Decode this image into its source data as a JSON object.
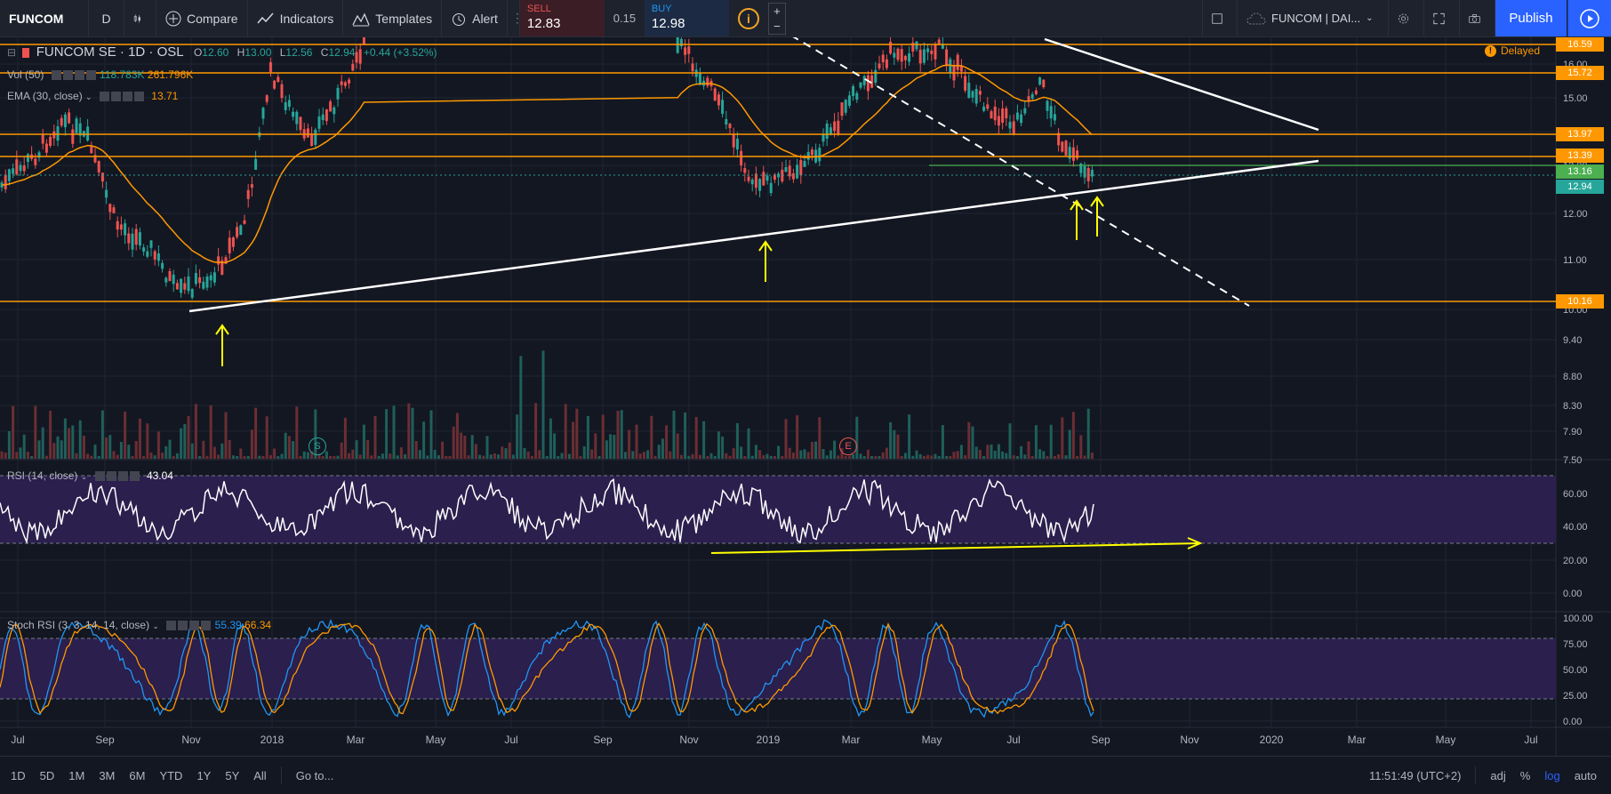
{
  "toolbar": {
    "symbol": "FUNCOM",
    "interval": "D",
    "compare": "Compare",
    "indicators": "Indicators",
    "templates": "Templates",
    "alert": "Alert",
    "sell_label": "SELL",
    "sell_price": "12.83",
    "spread": "0.15",
    "buy_label": "BUY",
    "buy_price": "12.98",
    "layout_name": "FUNCOM | DAI...",
    "publish": "Publish"
  },
  "legend": {
    "title": "FUNCOM SE · 1D · OSL",
    "open_label": "O",
    "open": "12.60",
    "high_label": "H",
    "high": "13.00",
    "low_label": "L",
    "low": "12.56",
    "close_label": "C",
    "close": "12.94",
    "change": "+0.44 (+3.52%)",
    "vol_label": "Vol (50)",
    "vol_1": "118.783K",
    "vol_2": "261.796K",
    "ema_label": "EMA (30, close)",
    "ema_value": "13.71",
    "rsi_label": "RSI (14, close)",
    "rsi_value": "43.04",
    "stoch_label": "Stoch RSI (3, 3, 14, 14, close)",
    "stoch_k": "55.39",
    "stoch_d": "66.34",
    "delayed": "Delayed"
  },
  "price_tags": [
    "16.59",
    "15.72",
    "13.97",
    "13.39",
    "13.16",
    "12.94",
    "10.16"
  ],
  "price_axis": [
    "16.00",
    "15.00",
    "14.00",
    "13.00",
    "12.00",
    "11.00",
    "10.00",
    "9.40",
    "8.80",
    "8.30",
    "7.90",
    "7.50"
  ],
  "rsi_axis": [
    "60.00",
    "40.00",
    "20.00",
    "0.00"
  ],
  "stoch_axis": [
    "100.00",
    "75.00",
    "50.00",
    "25.00",
    "0.00"
  ],
  "time_axis": [
    "Jul",
    "Sep",
    "Nov",
    "2018",
    "Mar",
    "May",
    "Jul",
    "Sep",
    "Nov",
    "2019",
    "Mar",
    "May",
    "Jul",
    "Sep",
    "Nov",
    "2020",
    "Mar",
    "May",
    "Jul"
  ],
  "markers": {
    "split": "S",
    "earnings": "E"
  },
  "bottombar": {
    "ranges": [
      "1D",
      "5D",
      "1M",
      "3M",
      "6M",
      "YTD",
      "1Y",
      "5Y",
      "All"
    ],
    "goto": "Go to...",
    "clock": "11:51:49 (UTC+2)",
    "adj": "adj",
    "percent": "%",
    "log": "log",
    "auto": "auto"
  },
  "colors": {
    "bg": "#131722",
    "up": "#26a69a",
    "down": "#ef5350",
    "orange": "#ff9800",
    "purple": "#2a1f4d",
    "yellow": "#ffff00",
    "accent": "#2962ff"
  }
}
